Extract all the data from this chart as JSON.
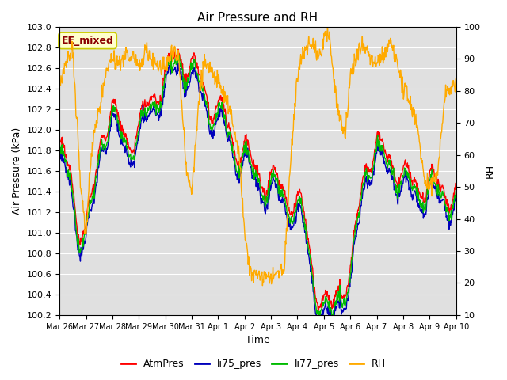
{
  "title": "Air Pressure and RH",
  "xlabel": "Time",
  "ylabel_left": "Air Pressure (kPa)",
  "ylabel_right": "RH",
  "ylim_left": [
    100.2,
    103.0
  ],
  "ylim_right": [
    10,
    100
  ],
  "yticks_left": [
    100.2,
    100.4,
    100.6,
    100.8,
    101.0,
    101.2,
    101.4,
    101.6,
    101.8,
    102.0,
    102.2,
    102.4,
    102.6,
    102.8,
    103.0
  ],
  "yticks_right": [
    10,
    20,
    30,
    40,
    50,
    60,
    70,
    80,
    90,
    100
  ],
  "xtick_labels": [
    "Mar 26",
    "Mar 27",
    "Mar 28",
    "Mar 29",
    "Mar 30",
    "Mar 31",
    "Apr 1",
    "Apr 2",
    "Apr 3",
    "Apr 4",
    "Apr 5",
    "Apr 6",
    "Apr 7",
    "Apr 8",
    "Apr 9",
    "Apr 10"
  ],
  "annotation_text": "EE_mixed",
  "annotation_bg": "#ffffcc",
  "annotation_border": "#cccc00",
  "annotation_text_color": "#8b0000",
  "colors": {
    "AtmPres": "#ff0000",
    "li75_pres": "#0000bb",
    "li77_pres": "#00bb00",
    "RH": "#ffaa00"
  },
  "line_width": 1.0,
  "bg_color": "#e0e0e0",
  "grid_color": "#ffffff",
  "fig_facecolor": "#ffffff",
  "title_fontsize": 11,
  "label_fontsize": 9,
  "tick_fontsize": 8,
  "xtick_fontsize": 7,
  "legend_fontsize": 9
}
